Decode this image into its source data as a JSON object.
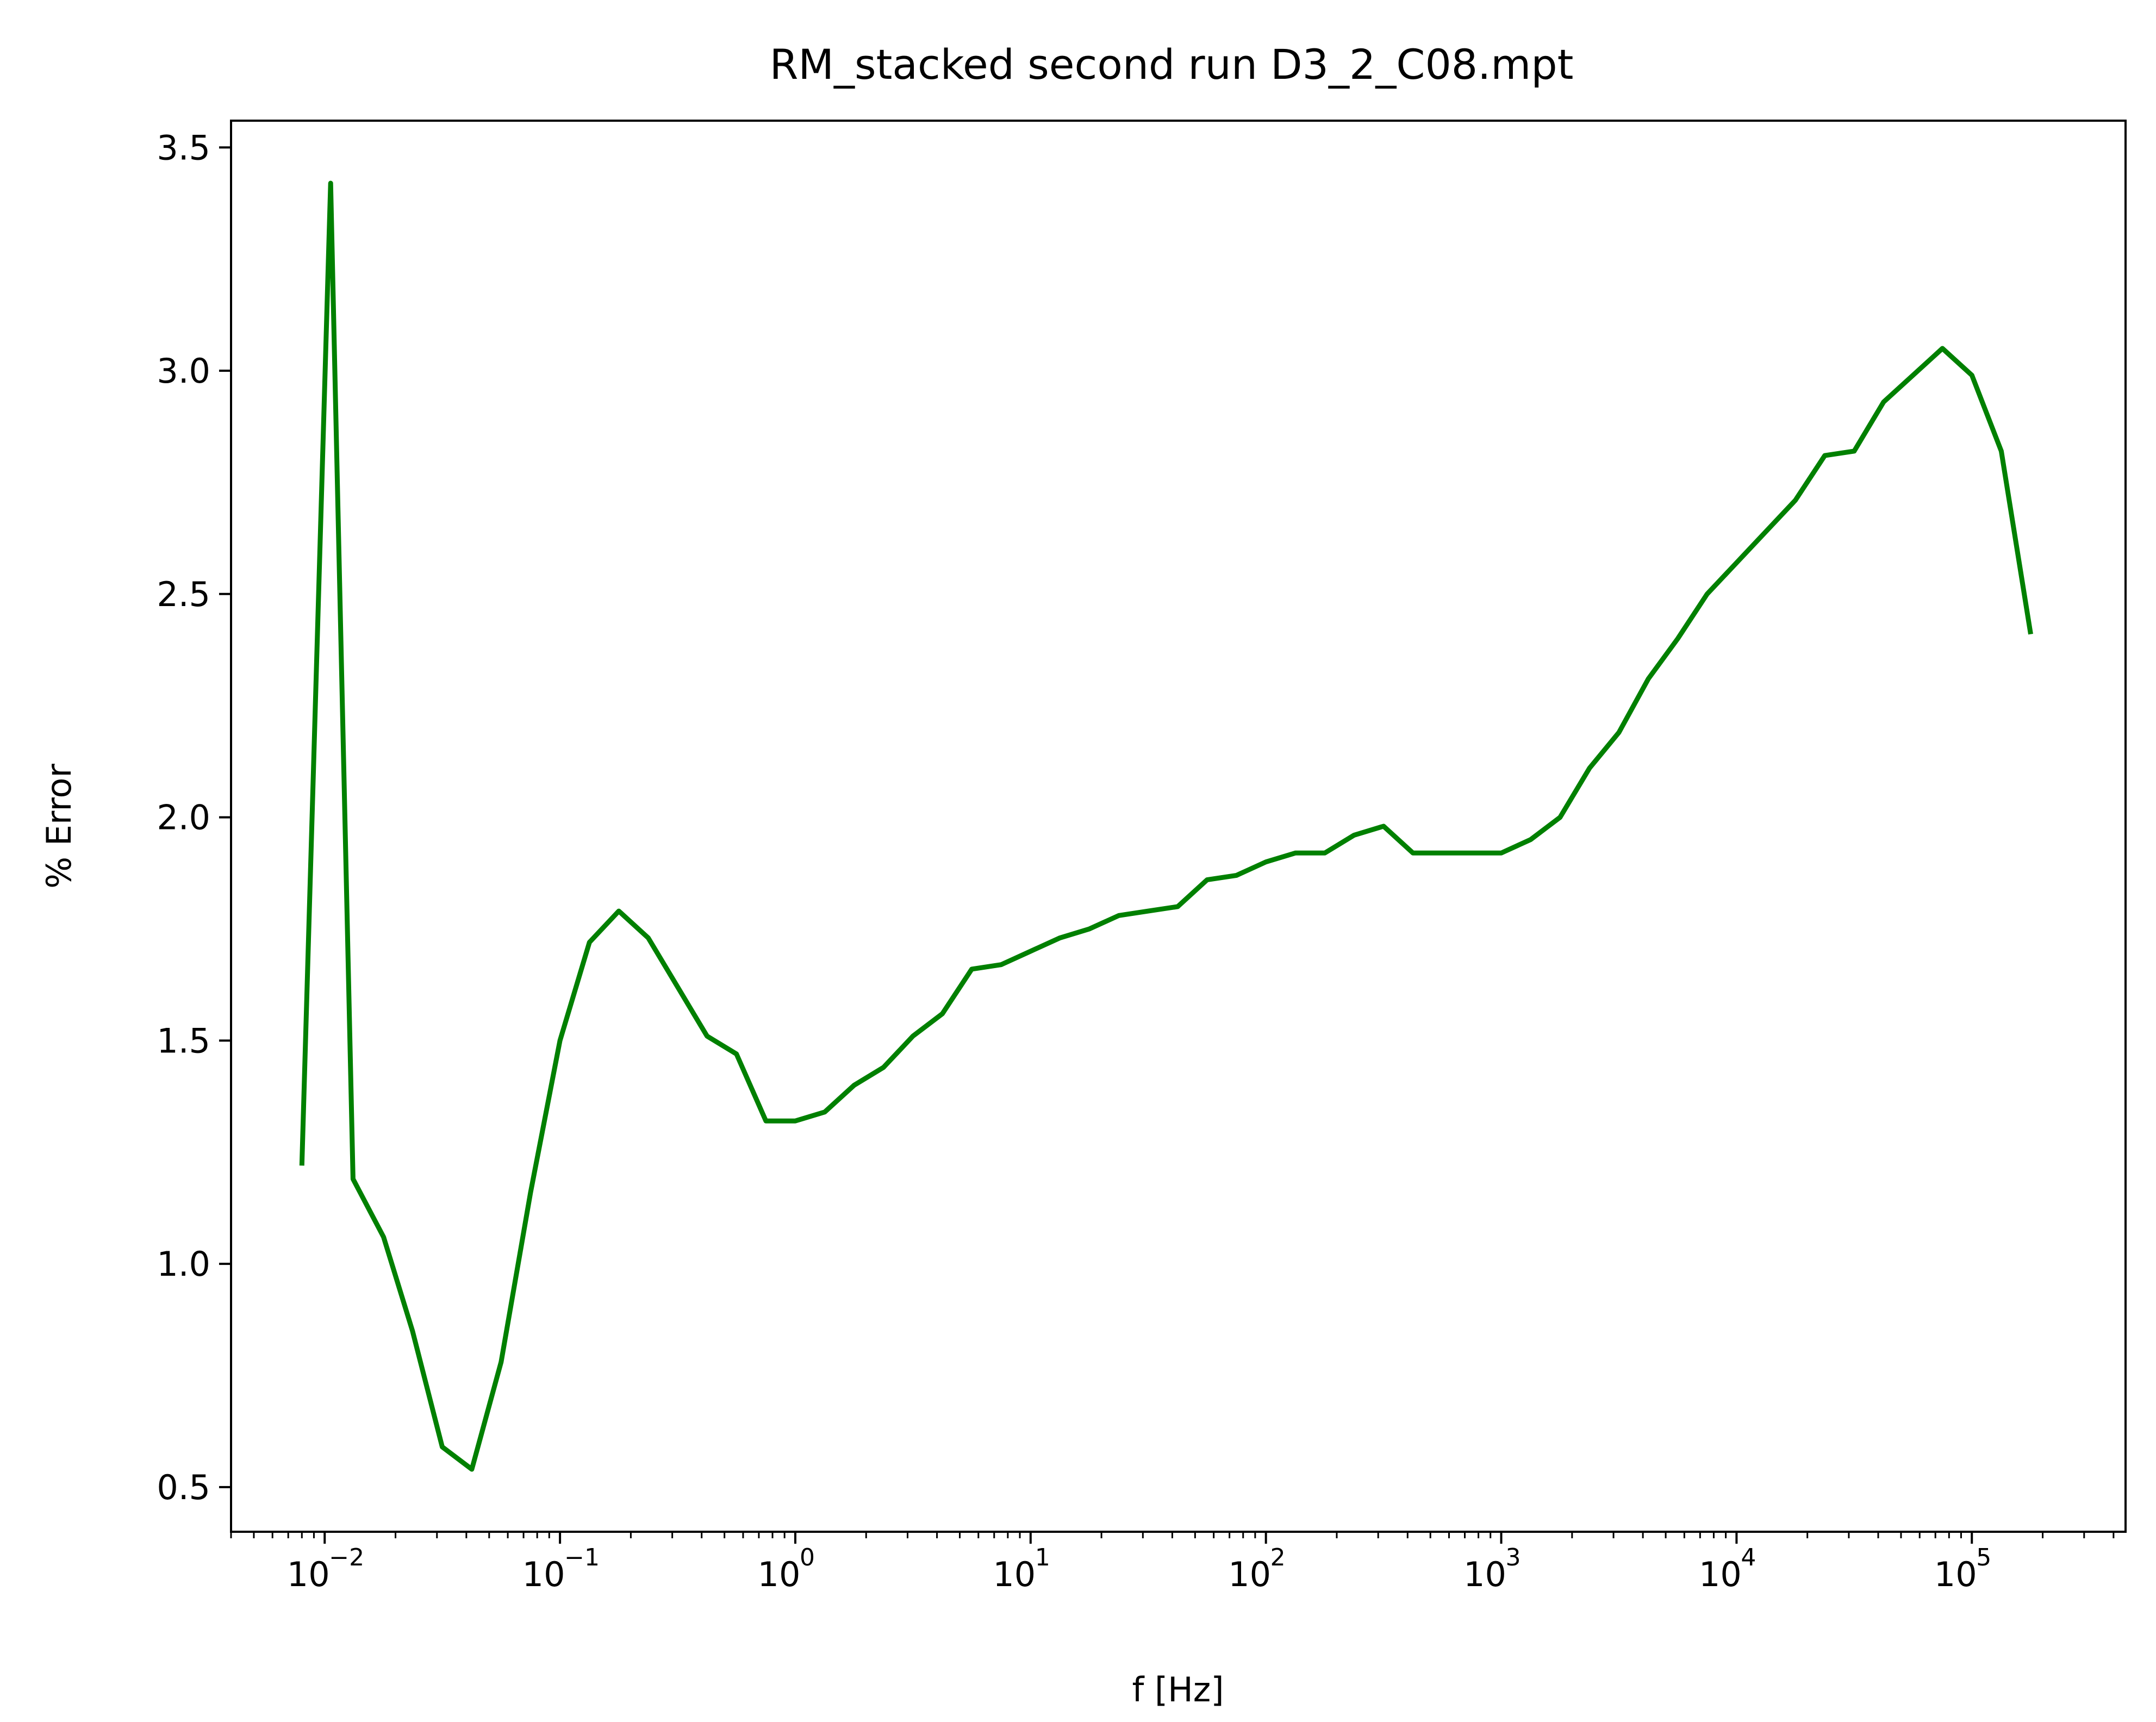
{
  "chart_data": {
    "type": "line",
    "title": "RM_stacked second run D3_2_C08.mpt",
    "xlabel": "f [Hz]",
    "ylabel": "% Error",
    "xscale": "log",
    "xlim": [
      0.004,
      450000
    ],
    "ylim": [
      0.4,
      3.56
    ],
    "x_ticks": [
      {
        "value": 0.01,
        "base": "10",
        "exp": "−2"
      },
      {
        "value": 0.1,
        "base": "10",
        "exp": "−1"
      },
      {
        "value": 1,
        "base": "10",
        "exp": "0"
      },
      {
        "value": 10,
        "base": "10",
        "exp": "1"
      },
      {
        "value": 100,
        "base": "10",
        "exp": "2"
      },
      {
        "value": 1000,
        "base": "10",
        "exp": "3"
      },
      {
        "value": 10000,
        "base": "10",
        "exp": "4"
      },
      {
        "value": 100000,
        "base": "10",
        "exp": "5"
      }
    ],
    "y_ticks": [
      {
        "value": 0.5,
        "label": "0.5"
      },
      {
        "value": 1.0,
        "label": "1.0"
      },
      {
        "value": 1.5,
        "label": "1.5"
      },
      {
        "value": 2.0,
        "label": "2.0"
      },
      {
        "value": 2.5,
        "label": "2.5"
      },
      {
        "value": 3.0,
        "label": "3.0"
      },
      {
        "value": 3.5,
        "label": "3.5"
      }
    ],
    "grid": false,
    "legend": "none",
    "series": [
      {
        "color": "#008000",
        "x": [
          0.008,
          0.0106,
          0.0132,
          0.0178,
          0.0236,
          0.0316,
          0.0422,
          0.0562,
          0.075,
          0.1,
          0.1334,
          0.1778,
          0.2371,
          0.3162,
          0.4217,
          0.5623,
          0.7499,
          1.0,
          1.3335,
          1.7783,
          2.3714,
          3.1623,
          4.217,
          5.6234,
          7.4989,
          10.0,
          13.335,
          17.783,
          23.714,
          31.623,
          42.17,
          56.234,
          74.989,
          100.0,
          133.35,
          177.83,
          237.14,
          316.23,
          421.7,
          562.34,
          749.89,
          1000.0,
          1333.5,
          1778.3,
          2371.4,
          3162.3,
          4217.0,
          5623.4,
          7498.9,
          10000.0,
          13335.0,
          17783.0,
          23714.0,
          31623.0,
          42170.0,
          56234.0,
          74989.0,
          100000.0,
          133350.0,
          177830.0
        ],
        "y": [
          1.22,
          3.42,
          1.19,
          1.06,
          0.85,
          0.59,
          0.54,
          0.78,
          1.16,
          1.5,
          1.72,
          1.79,
          1.73,
          1.62,
          1.51,
          1.47,
          1.32,
          1.32,
          1.34,
          1.4,
          1.44,
          1.51,
          1.56,
          1.66,
          1.67,
          1.7,
          1.73,
          1.75,
          1.78,
          1.79,
          1.8,
          1.86,
          1.87,
          1.9,
          1.92,
          1.92,
          1.96,
          1.98,
          1.92,
          1.92,
          1.92,
          1.92,
          1.95,
          2.0,
          2.11,
          2.19,
          2.31,
          2.4,
          2.5,
          2.57,
          2.64,
          2.71,
          2.81,
          2.82,
          2.93,
          2.99,
          3.05,
          2.99,
          2.82,
          2.41
        ]
      }
    ]
  }
}
